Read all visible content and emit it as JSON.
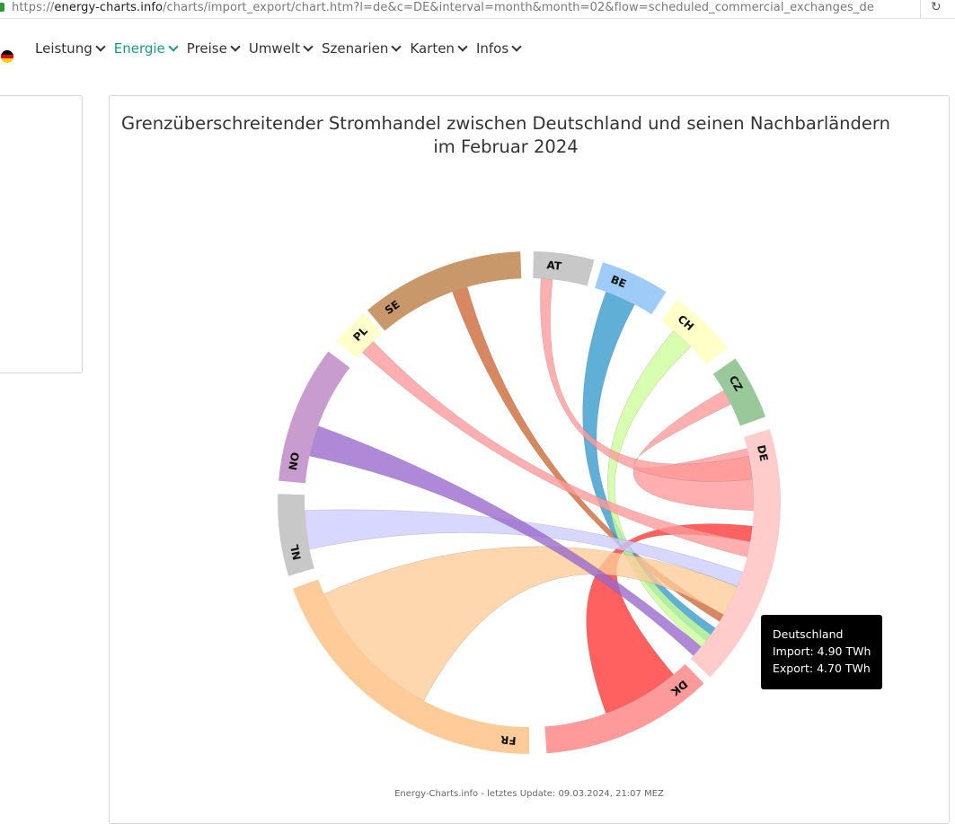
{
  "browser": {
    "url_scheme": "https://",
    "url_host": "energy-charts.info",
    "url_path": "/charts/import_export/chart.htm?l=de&c=DE&interval=month&month=02&flow=scheduled_commercial_exchanges_de"
  },
  "nav": {
    "items": [
      {
        "label": "Leistung"
      },
      {
        "label": "Energie"
      },
      {
        "label": "Preise"
      },
      {
        "label": "Umwelt"
      },
      {
        "label": "Szenarien"
      },
      {
        "label": "Karten"
      },
      {
        "label": "Infos"
      }
    ],
    "active": "Energie",
    "accent_color": "#1a9c7b"
  },
  "chart_data": {
    "type": "chord",
    "title": "Grenzüberschreitender Stromhandel zwischen Deutschland und seinen Nachbarländern im Februar 2024",
    "credit": "Energy-Charts.info - letztes Update: 09.03.2024, 21:07 MEZ",
    "countries": [
      {
        "code": "AT",
        "color": "#c8c8c8"
      },
      {
        "code": "BE",
        "color": "#9ecbf7"
      },
      {
        "code": "CH",
        "color": "#ffffc8"
      },
      {
        "code": "CZ",
        "color": "#99c99a"
      },
      {
        "code": "DE",
        "color": "#ffcccc"
      },
      {
        "code": "DK",
        "color": "#ff9a9a"
      },
      {
        "code": "FR",
        "color": "#ffcc99"
      },
      {
        "code": "NL",
        "color": "#c8c8c8"
      },
      {
        "code": "NO",
        "color": "#c99ccf"
      },
      {
        "code": "PL",
        "color": "#ffffcc"
      },
      {
        "code": "SE",
        "color": "#c8986a"
      }
    ],
    "ribbon_colors": [
      "#cc6633",
      "#3399cc",
      "#ccff99",
      "#ff9999",
      "#ff3333",
      "#ffcc99",
      "#ccccff",
      "#9966cc",
      "#ff9999"
    ],
    "tooltip": {
      "country": "Deutschland",
      "import_label": "Import: 4.90 TWh",
      "export_label": "Export: 4.70 TWh"
    }
  }
}
